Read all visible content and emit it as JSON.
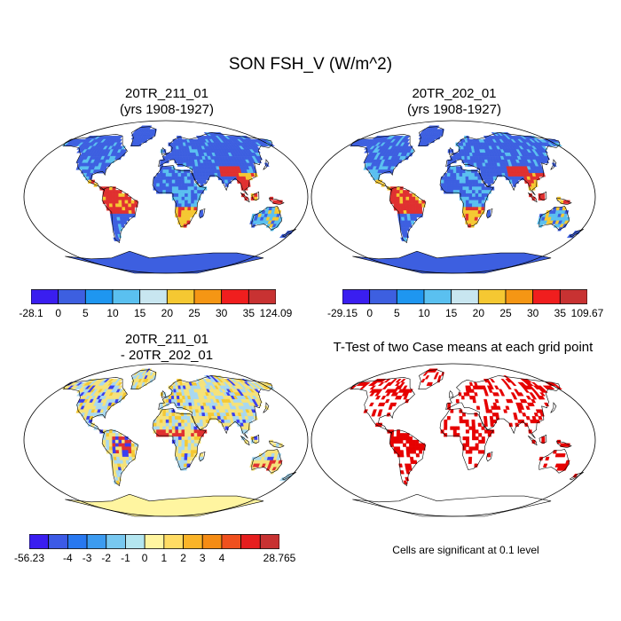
{
  "main_title": "SON FSH_V (W/m^2)",
  "panels": [
    {
      "title1": "20TR_211_01",
      "title2": "(yrs 1908-1927)"
    },
    {
      "title1": "20TR_202_01",
      "title2": "(yrs 1908-1927)"
    },
    {
      "title1": "20TR_211_01",
      "title2": "- 20TR_202_01"
    },
    {
      "title1": "T-Test of two Case means at each grid point",
      "title2": ""
    }
  ],
  "colorbars": [
    {
      "colors": [
        "#3a1ef0",
        "#3d5fe0",
        "#1e96f0",
        "#5ac0f0",
        "#c8e6f0",
        "#f5c832",
        "#f59614",
        "#f01e1e",
        "#c83232"
      ],
      "labels": [
        "-28.1",
        "0",
        "5",
        "10",
        "15",
        "20",
        "25",
        "30",
        "35",
        "124.09"
      ]
    },
    {
      "colors": [
        "#3a1ef0",
        "#3d5fe0",
        "#1e96f0",
        "#5ac0f0",
        "#c8e6f0",
        "#f5c832",
        "#f59614",
        "#f01e1e",
        "#c83232"
      ],
      "labels": [
        "-29.15",
        "0",
        "5",
        "10",
        "15",
        "20",
        "25",
        "30",
        "35",
        "109.67"
      ]
    },
    {
      "colors": [
        "#3a1ef0",
        "#3c5ae6",
        "#2878f0",
        "#3c9bf0",
        "#78c8f0",
        "#b4e6f0",
        "#fff5a0",
        "#ffdc64",
        "#fab428",
        "#f58c14",
        "#f0501e",
        "#e61e1e",
        "#c83232"
      ],
      "labels": [
        "-56.23",
        "-4",
        "-3",
        "-2",
        "-1",
        "0",
        "1",
        "2",
        "3",
        "4",
        "28.765"
      ],
      "label_slots": [
        0,
        2,
        3,
        4,
        5,
        6,
        7,
        8,
        9,
        10,
        13
      ]
    }
  ],
  "map_colors": {
    "mean_cold": "#3d5fe0",
    "mean_mid": "#5ac0f0",
    "mean_warm": "#f5c832",
    "mean_hot": "#e03030",
    "diff_base": "#f5e27a",
    "diff_cool": "#a8d8f0",
    "diff_blue": "#3a3ef0",
    "diff_red": "#e03030",
    "antarctica_diff": "#fff5a0",
    "sig": "#e60000"
  },
  "note": "Cells are significant at 0.1 level"
}
